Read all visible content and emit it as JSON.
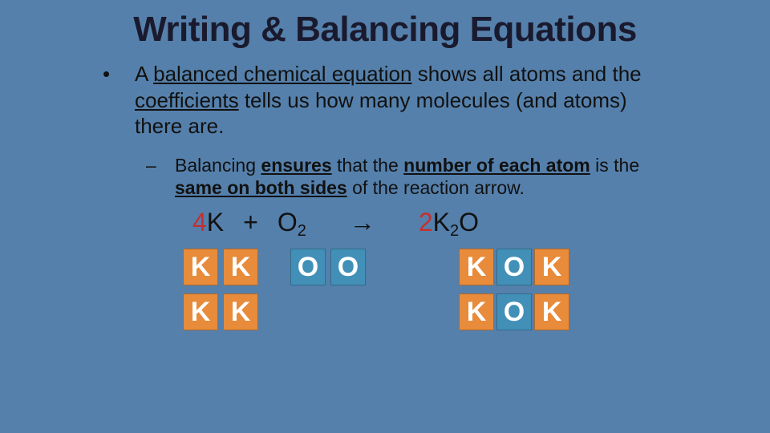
{
  "colors": {
    "background": "#5580ab",
    "title_text": "#1a1a2e",
    "body_text": "#111111",
    "coefficient": "#c62f2f",
    "atom_k_bg": "#e88b3a",
    "atom_o_bg": "#4290b8",
    "atom_text": "#ffffff"
  },
  "typography": {
    "title_fontsize": 44,
    "bullet_main_fontsize": 26,
    "bullet_sub_fontsize": 23,
    "equation_fontsize": 32,
    "atom_label_fontsize": 34,
    "title_weight": "bold",
    "atom_weight": "bold"
  },
  "title": "Writing & Balancing Equations",
  "bullets": {
    "main": {
      "pre": "A ",
      "term1": "balanced chemical equation",
      "mid1": " shows all atoms and the ",
      "term2": "coefficients",
      "post": " tells us how many molecules (and atoms) there are."
    },
    "sub": {
      "pre": "Balancing ",
      "term1": "ensures",
      "mid1": " that the ",
      "term2": "number of each atom",
      "mid2": " is the ",
      "term3": "same on both sides",
      "post": " of the reaction arrow."
    }
  },
  "equation": {
    "reactant1": {
      "coef": "4",
      "symbol": "K",
      "sub": ""
    },
    "plus": "+",
    "reactant2": {
      "coef": "",
      "symbol": "O",
      "sub": "2"
    },
    "arrow": "→",
    "product": {
      "coef": "2",
      "symbol1": "K",
      "sub1": "2",
      "symbol2": "O",
      "sub2": ""
    }
  },
  "atom_diagram": {
    "atom_box": {
      "width": 44,
      "height": 46
    },
    "rows": [
      {
        "reactant_k": [
          "K",
          "K"
        ],
        "reactant_o": [
          "O",
          "O"
        ],
        "product": [
          "K",
          "O",
          "K"
        ]
      },
      {
        "reactant_k": [
          "K",
          "K"
        ],
        "reactant_o": [],
        "product": [
          "K",
          "O",
          "K"
        ]
      }
    ]
  }
}
